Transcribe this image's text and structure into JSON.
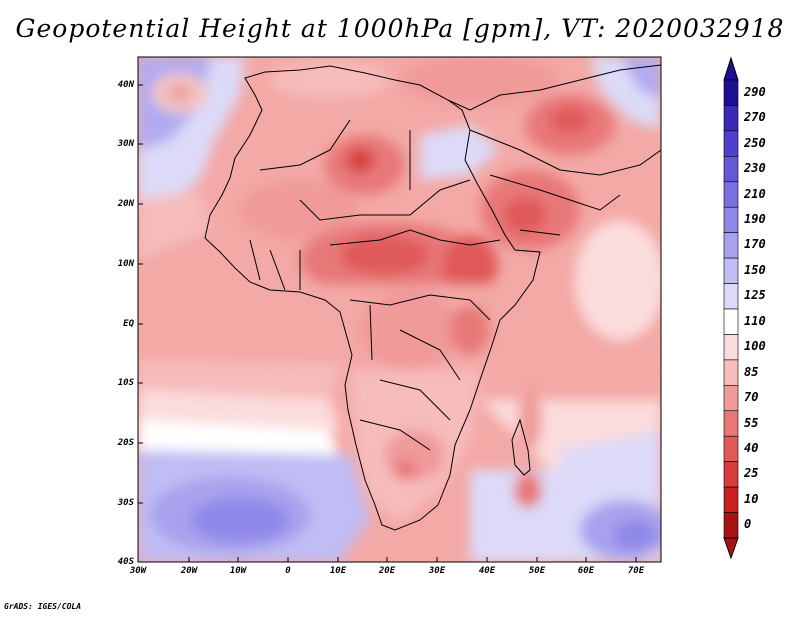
{
  "title": "Geopotential Height at 1000hPa [gpm], VT: 2020032918",
  "credit": "GrADS: IGES/COLA",
  "lat_labels": [
    "40N",
    "30N",
    "20N",
    "10N",
    "EQ",
    "10S",
    "20S",
    "30S",
    "40S"
  ],
  "lon_labels": [
    "30W",
    "20W",
    "10W",
    "0",
    "10E",
    "20E",
    "30E",
    "40E",
    "50E",
    "60E",
    "70E"
  ],
  "colorbar": {
    "labels": [
      "290",
      "270",
      "250",
      "230",
      "210",
      "190",
      "170",
      "150",
      "125",
      "110",
      "100",
      "85",
      "70",
      "55",
      "40",
      "25",
      "10",
      "0"
    ],
    "colors": [
      "#1e1094",
      "#3a28b8",
      "#4e40cc",
      "#6458d8",
      "#7a70e0",
      "#9088e8",
      "#a8a2ee",
      "#c0bcf4",
      "#dcdaf8",
      "#ffffff",
      "#fbdcdc",
      "#f7bcbc",
      "#f09a9a",
      "#e87878",
      "#e05a5a",
      "#d63c3c",
      "#c82020",
      "#a81414"
    ]
  }
}
